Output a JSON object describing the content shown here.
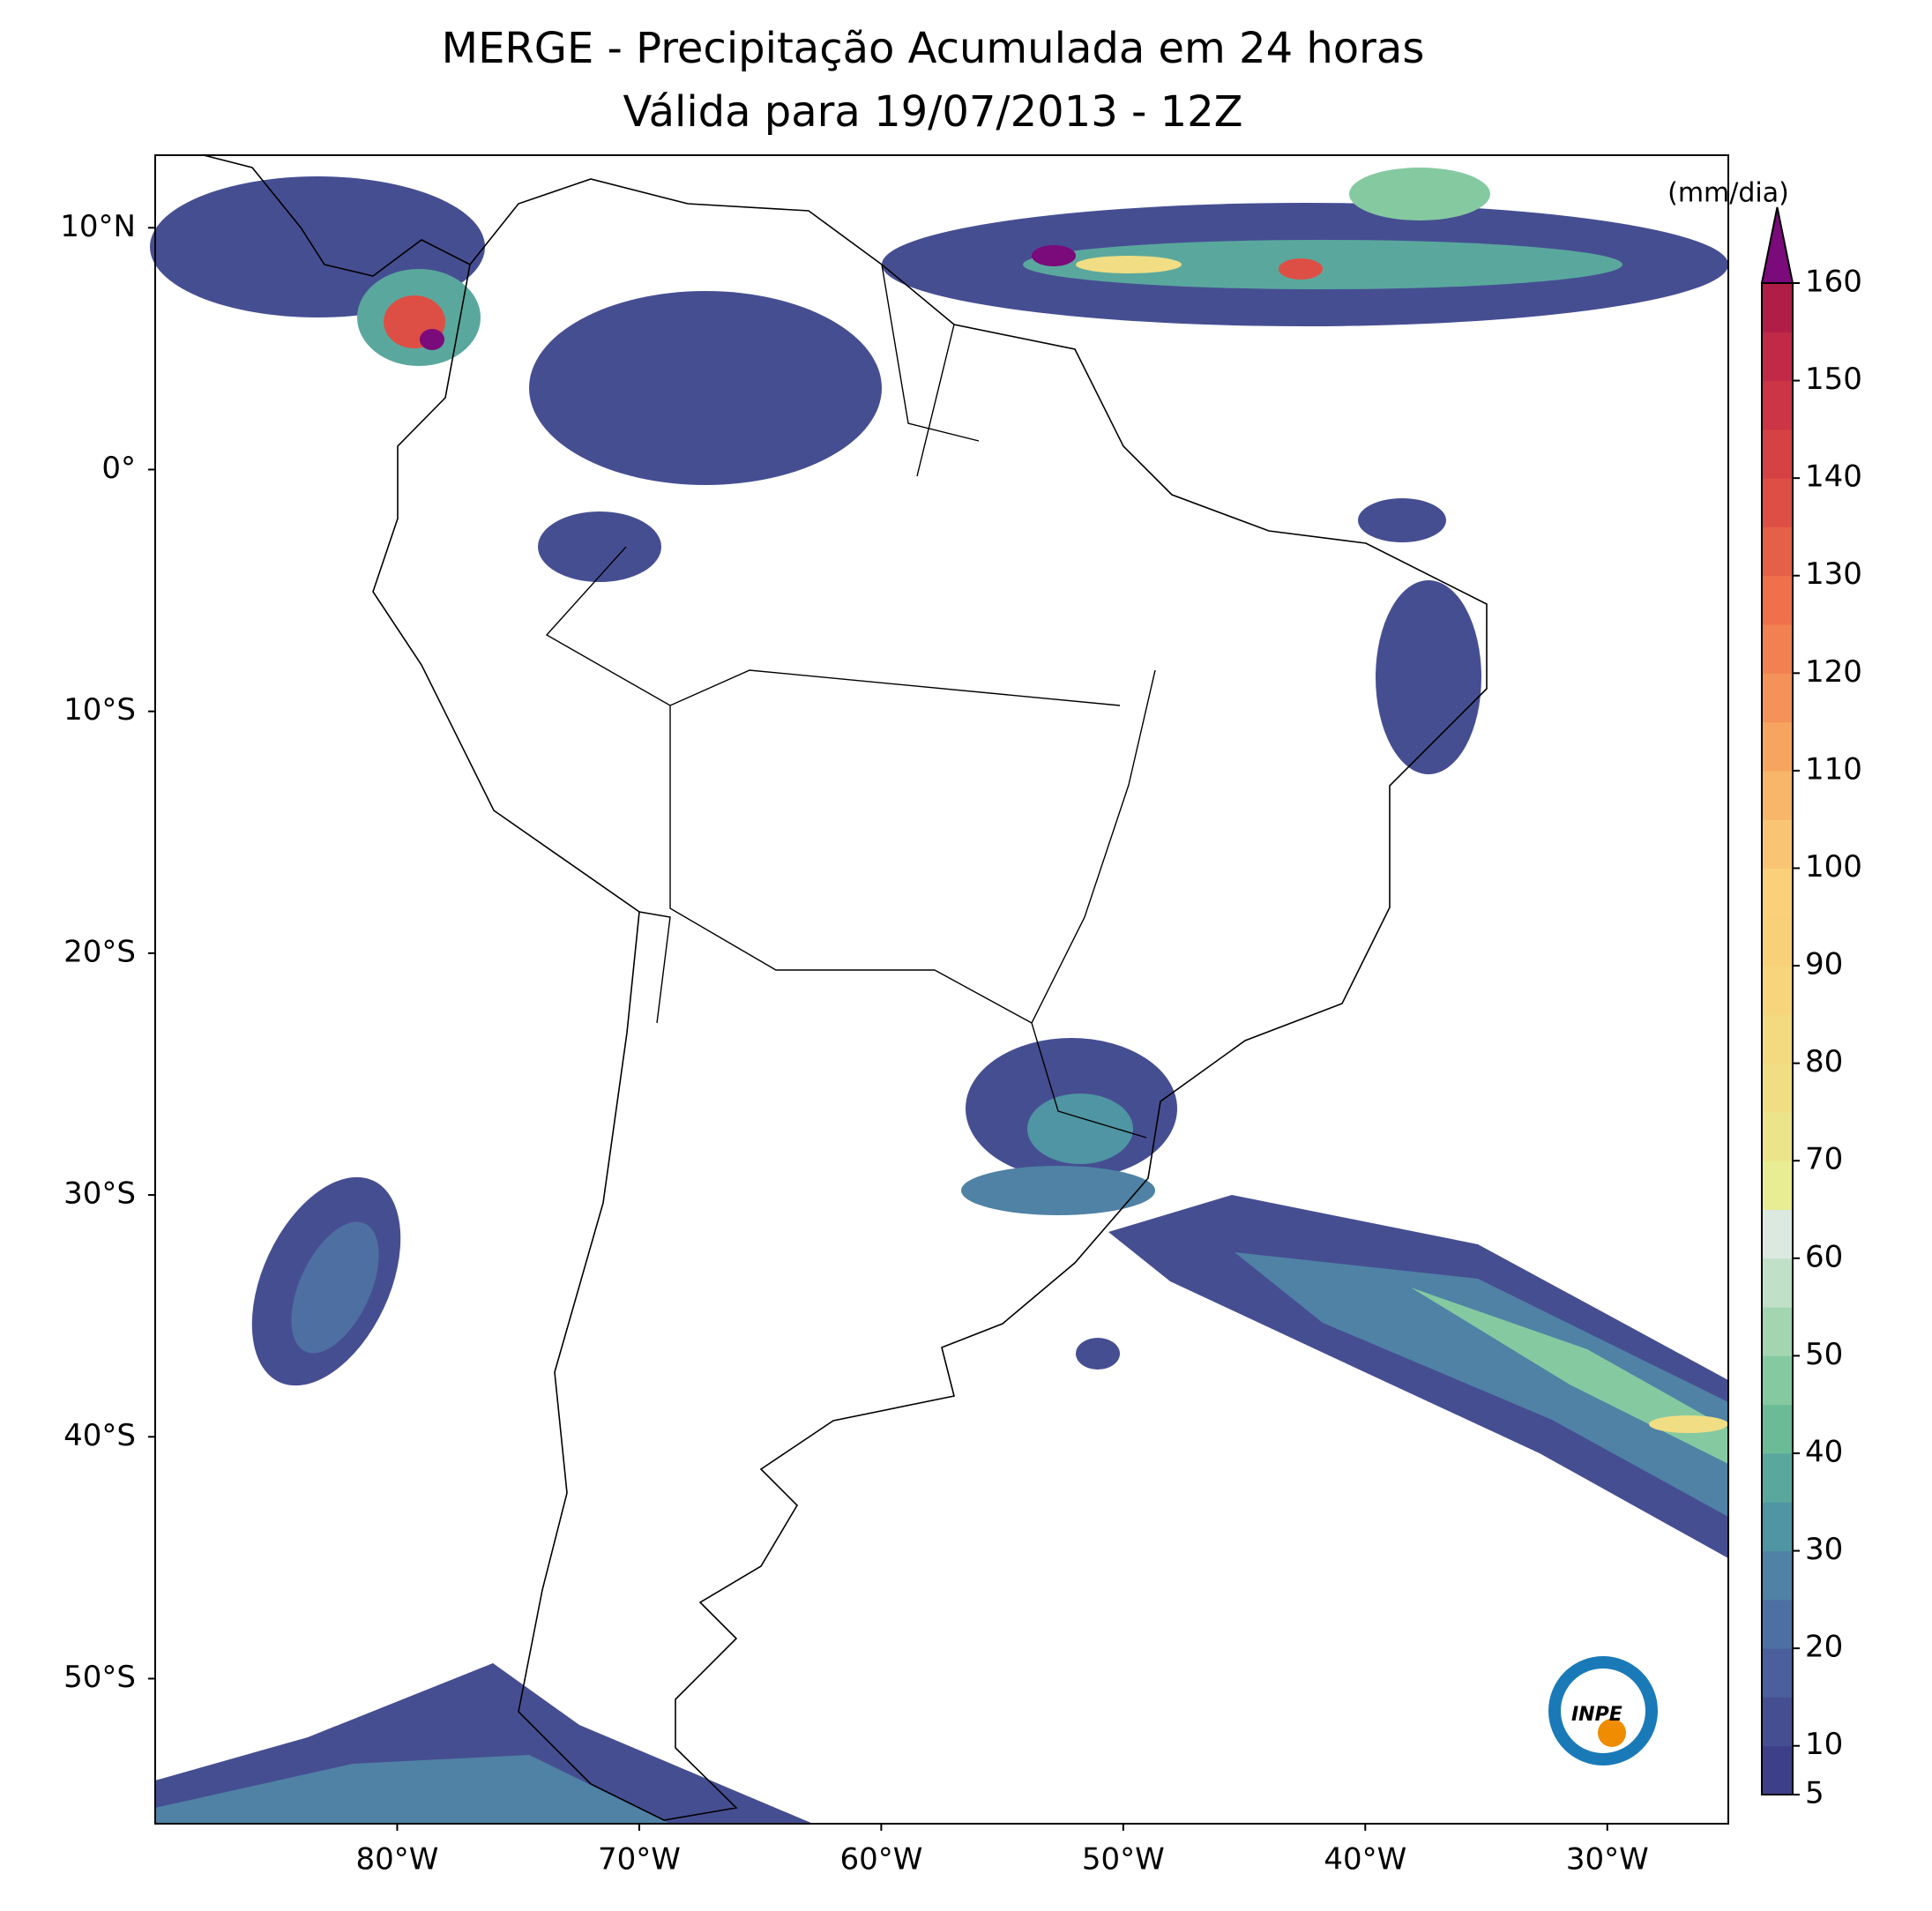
{
  "title": "MERGE - Precipitação Acumulada em 24 horas",
  "subtitle": "Válida para 19/07/2013 - 12Z",
  "map": {
    "xlim": [
      -90,
      -25
    ],
    "ylim": [
      -56,
      13
    ],
    "xticks": [
      {
        "value": -80,
        "label": "80°W"
      },
      {
        "value": -70,
        "label": "70°W"
      },
      {
        "value": -60,
        "label": "60°W"
      },
      {
        "value": -50,
        "label": "50°W"
      },
      {
        "value": -40,
        "label": "40°W"
      },
      {
        "value": -30,
        "label": "30°W"
      }
    ],
    "yticks": [
      {
        "value": 10,
        "label": "10°N"
      },
      {
        "value": 0,
        "label": "0°"
      },
      {
        "value": -10,
        "label": "10°S"
      },
      {
        "value": -20,
        "label": "20°S"
      },
      {
        "value": -30,
        "label": "30°S"
      },
      {
        "value": -40,
        "label": "40°S"
      },
      {
        "value": -50,
        "label": "50°S"
      }
    ]
  },
  "colorbar": {
    "label": "(mm/dia)",
    "range": [
      5,
      160
    ],
    "ticks": [
      5,
      10,
      20,
      30,
      40,
      50,
      60,
      70,
      80,
      90,
      100,
      110,
      120,
      130,
      140,
      150,
      160
    ],
    "colors": [
      "#3d3f88",
      "#464e92",
      "#4a5f9b",
      "#4e6fa2",
      "#4f82a5",
      "#4f95a3",
      "#5aa89d",
      "#6bbb97",
      "#85c9a1",
      "#a2d5b0",
      "#c0e0c8",
      "#dbe9e0",
      "#e8ec93",
      "#ece48a",
      "#f0dd84",
      "#f3d97f",
      "#f6d57d",
      "#f8d07a",
      "#fbd07a",
      "#f9c574",
      "#f8b66a",
      "#f6a460",
      "#f49259",
      "#f28152",
      "#ef704b",
      "#e65f47",
      "#dd4f45",
      "#d44244",
      "#cb3545",
      "#c12a47",
      "#b01e48"
    ],
    "extend_color": "#7b0a7b"
  },
  "logo": {
    "text": "INPE"
  }
}
